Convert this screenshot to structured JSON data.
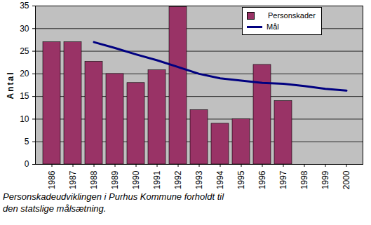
{
  "chart_data": {
    "type": "bar",
    "caption": "Personskadeudviklingen i Purhus Kommune forholdt til den statslige målsætning.",
    "y_label": "Antal",
    "categories": [
      "1986",
      "1987",
      "1988",
      "1989",
      "1990",
      "1991",
      "1992",
      "1993",
      "1994",
      "1995",
      "1996",
      "1997",
      "1998",
      "1999",
      "2000"
    ],
    "series": [
      {
        "name": "Personskader",
        "type": "bar",
        "color": "#993366",
        "values": [
          27,
          27,
          22.7,
          20,
          18,
          20.8,
          34.8,
          12,
          9,
          10,
          22,
          14,
          null,
          null,
          null
        ]
      },
      {
        "name": "Mål",
        "type": "line",
        "color": "#000080",
        "values": [
          null,
          null,
          27,
          25.7,
          24.3,
          23,
          21.5,
          20,
          19,
          18.5,
          18,
          17.8,
          17.3,
          16.7,
          16.3
        ]
      }
    ],
    "ylim": [
      0,
      35
    ],
    "yticks": [
      0,
      5,
      10,
      15,
      20,
      25,
      30,
      35
    ],
    "grid": true,
    "legend": "top-right"
  }
}
